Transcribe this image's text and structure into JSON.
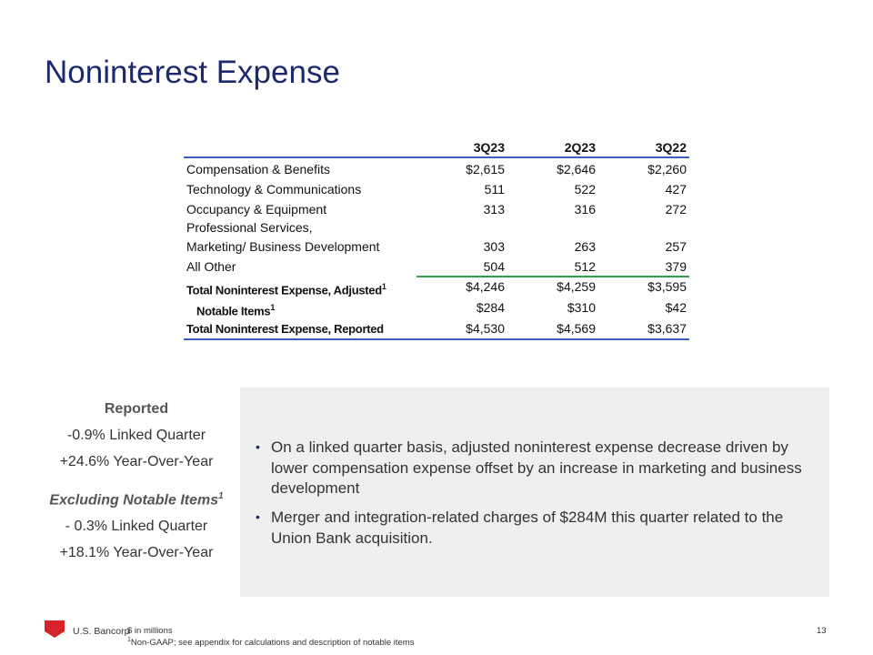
{
  "title": "Noninterest Expense",
  "table": {
    "header": [
      "3Q23",
      "2Q23",
      "3Q22"
    ],
    "rows": [
      {
        "label": "Compensation & Benefits",
        "values": [
          "$2,615",
          "$2,646",
          "$2,260"
        ]
      },
      {
        "label": "Technology & Communications",
        "values": [
          "511",
          "522",
          "427"
        ]
      },
      {
        "label": "Occupancy & Equipment",
        "values": [
          "313",
          "316",
          "272"
        ]
      },
      {
        "label": "Professional Services,\nMarketing/ Business Development",
        "values": [
          "303",
          "263",
          "257"
        ]
      },
      {
        "label": "All Other",
        "values": [
          "504",
          "512",
          "379"
        ]
      },
      {
        "label": "Total Noninterest Expense, Adjusted",
        "sup": "1",
        "values": [
          "$4,246",
          "$4,259",
          "$3,595"
        ]
      },
      {
        "label": "Notable Items",
        "sup": "1",
        "values": [
          "$284",
          "$310",
          "$42"
        ]
      },
      {
        "label": "Total Noninterest Expense, Reported",
        "values": [
          "$4,530",
          "$4,569",
          "$3,637"
        ]
      }
    ]
  },
  "summary": {
    "reported": {
      "heading": "Reported",
      "lines": [
        "-0.9% Linked Quarter",
        "+24.6% Year-Over-Year"
      ]
    },
    "excluding": {
      "heading": "Excluding Notable Items",
      "sup": "1",
      "lines": [
        "- 0.3% Linked Quarter",
        "+18.1% Year-Over-Year"
      ]
    }
  },
  "bullets": [
    "On a linked quarter basis, adjusted noninterest expense decrease driven by lower compensation expense offset by an increase in marketing and business development",
    "Merger and integration-related charges of $284M this quarter related to the Union Bank acquisition."
  ],
  "footer": {
    "brand": "U.S. Bancorp",
    "note": "$ in millions",
    "footnote_mark": "1",
    "footnote": "Non-GAAP; see appendix for calculations and description of notable items",
    "page": "13"
  }
}
